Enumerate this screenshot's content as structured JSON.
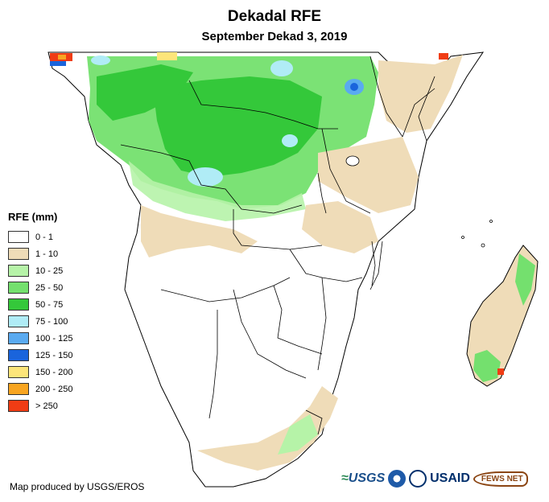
{
  "title": "Dekadal RFE",
  "subtitle": "September Dekad 3, 2019",
  "legend": {
    "title": "RFE (mm)",
    "items": [
      {
        "label": "0 - 1",
        "color": "#ffffff"
      },
      {
        "label": "1 - 10",
        "color": "#efdcb8"
      },
      {
        "label": "10 - 25",
        "color": "#b6f3a8"
      },
      {
        "label": "25 - 50",
        "color": "#74e06e"
      },
      {
        "label": "50 - 75",
        "color": "#34c83a"
      },
      {
        "label": "75 - 100",
        "color": "#b0ecf6"
      },
      {
        "label": "100 - 125",
        "color": "#5aaaf0"
      },
      {
        "label": "125 - 150",
        "color": "#1a64dc"
      },
      {
        "label": "150 - 200",
        "color": "#fde57a"
      },
      {
        "label": "200 - 250",
        "color": "#f8a521"
      },
      {
        "label": "> 250",
        "color": "#f03c14"
      }
    ]
  },
  "credit": "Map produced by USGS/EROS",
  "logos": {
    "usgs": "USGS",
    "usaid": "USAID",
    "fews": "FEWS NET"
  }
}
